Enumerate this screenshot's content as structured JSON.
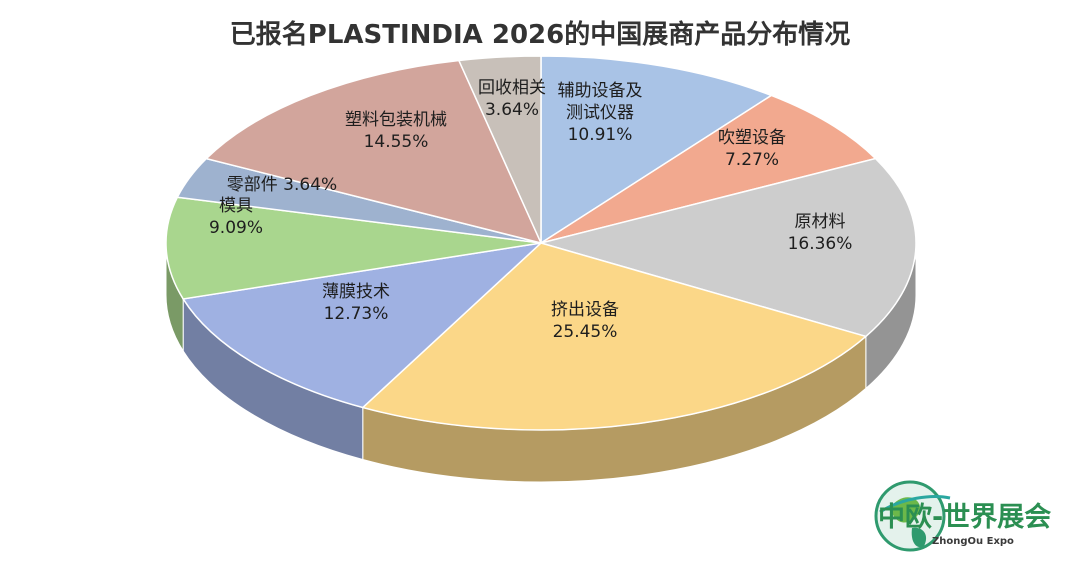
{
  "chart_data": {
    "type": "pie",
    "title": "已报名PLASTINDIA 2026的中国展商产品分布情况",
    "slices": [
      {
        "label": "辅助设备及测试仪器",
        "lines": [
          "辅助设备及",
          "测试仪器"
        ],
        "pct": "10.91%",
        "value": 10.91,
        "color": "#a9c3e6"
      },
      {
        "label": "吹塑设备",
        "lines": [
          "吹塑设备"
        ],
        "pct": "7.27%",
        "value": 7.27,
        "color": "#f2a98f"
      },
      {
        "label": "原材料",
        "lines": [
          "原材料"
        ],
        "pct": "16.36%",
        "value": 16.36,
        "color": "#cdcdcd"
      },
      {
        "label": "挤出设备",
        "lines": [
          "挤出设备"
        ],
        "pct": "25.45%",
        "value": 25.45,
        "color": "#fbd788"
      },
      {
        "label": "薄膜技术",
        "lines": [
          "薄膜技术"
        ],
        "pct": "12.73%",
        "value": 12.73,
        "color": "#9fb1e2"
      },
      {
        "label": "模具",
        "lines": [
          "模具"
        ],
        "pct": "9.09%",
        "value": 9.09,
        "color": "#a9d68e"
      },
      {
        "label": "零部件",
        "lines": [
          "零部件"
        ],
        "pct": "3.64%",
        "value": 3.64,
        "color": "#9eb2cf"
      },
      {
        "label": "塑料包装机械",
        "lines": [
          "塑料包装机械"
        ],
        "pct": "14.55%",
        "value": 14.55,
        "color": "#d2a59c"
      },
      {
        "label": "回收相关",
        "lines": [
          "回收相关"
        ],
        "pct": "3.64%",
        "value": 3.64,
        "color": "#c8c0b9"
      }
    ],
    "start": "top, clockwise",
    "legend": "none (labels on slices)"
  },
  "watermark": {
    "main": "中欧-世界展会",
    "sub": "ZhongOu Expo"
  }
}
